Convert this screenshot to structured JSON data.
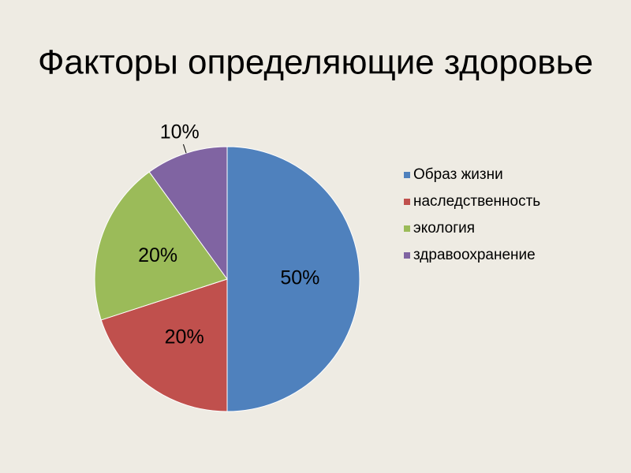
{
  "chart_data": {
    "type": "pie",
    "title": "Факторы определяющие здоровье",
    "categories": [
      "Образ жизни",
      "наследственность",
      "экология",
      "здравоохранение"
    ],
    "values": [
      50,
      20,
      20,
      10
    ],
    "value_labels": [
      "50%",
      "20%",
      "20%",
      "10%"
    ],
    "colors": [
      "#4f81bd",
      "#c0504d",
      "#9bbb59",
      "#8064a2"
    ],
    "legend": "right"
  }
}
